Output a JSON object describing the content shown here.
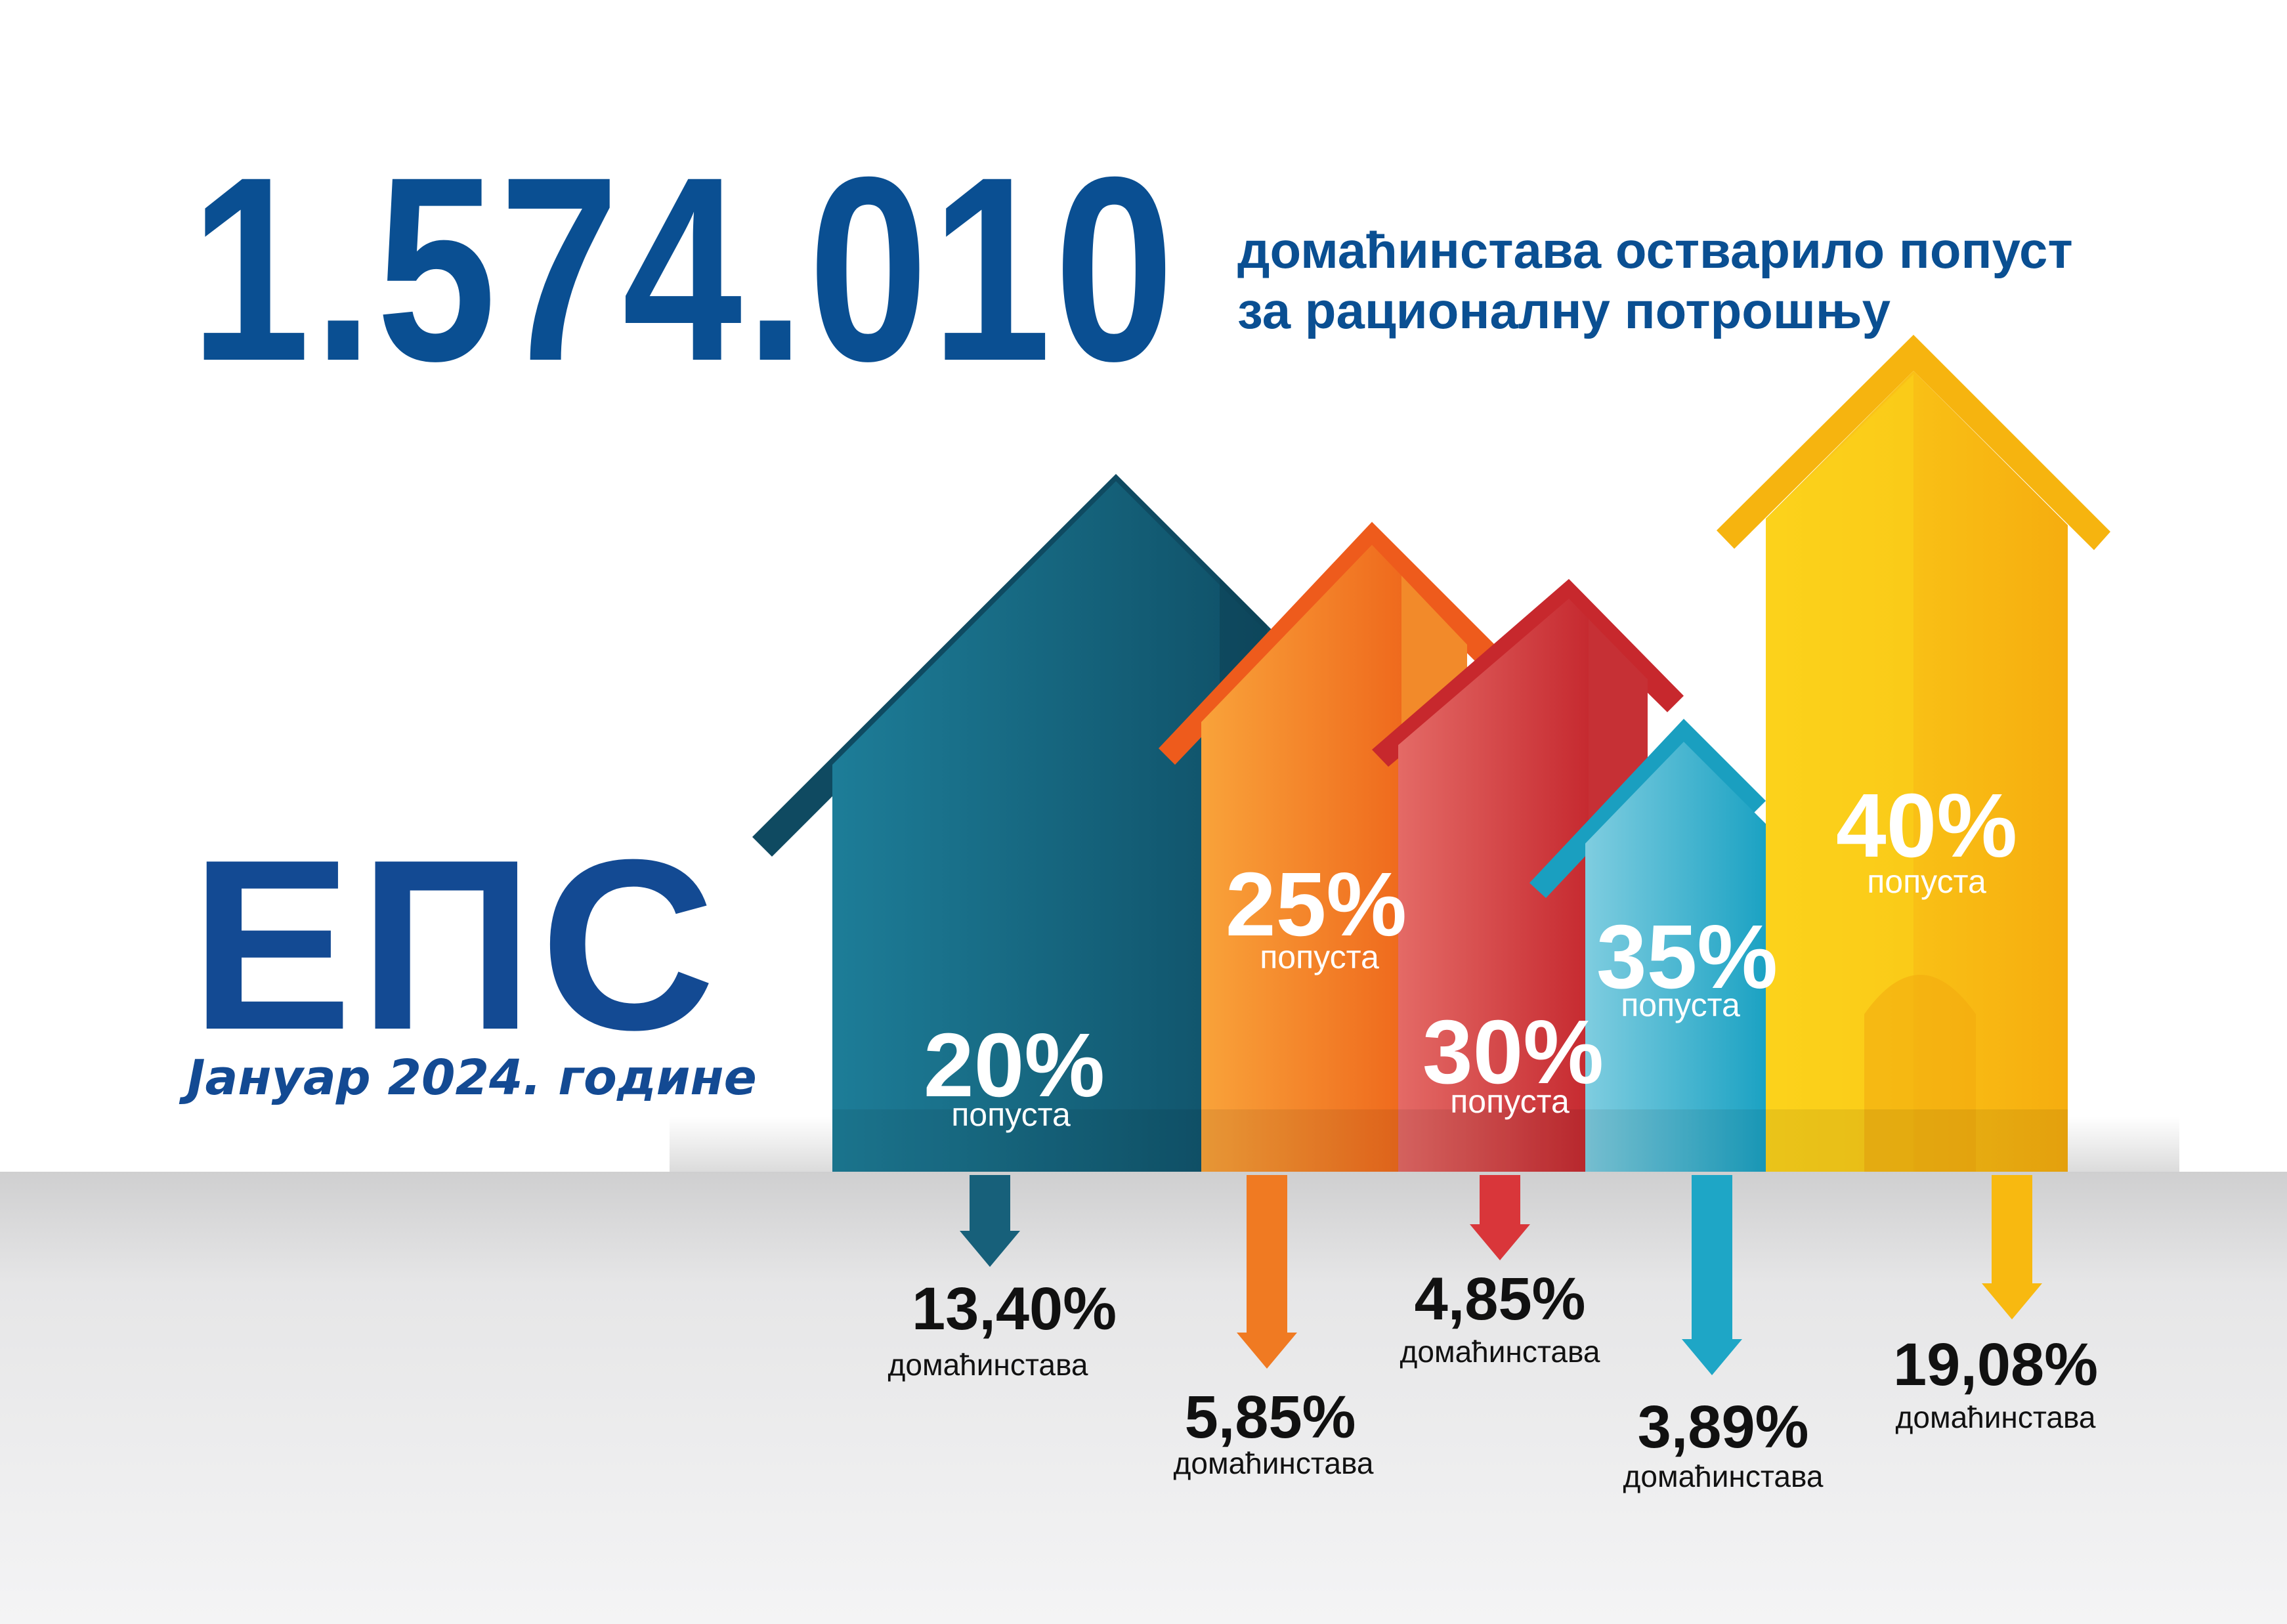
{
  "headline": {
    "number": "1.574.010",
    "line1": "домаћинстава остварило попуст",
    "line2": "за рационалну потрошњу"
  },
  "logo": {
    "text": "ЕПС"
  },
  "date_label": "Јануар 2024. године",
  "colors": {
    "teal": "#17607a",
    "orange": "#f07a22",
    "red": "#d9363a",
    "cyan": "#1ea6c6",
    "yellow": "#f8b910",
    "brand_blue": "#0a4f92"
  },
  "chart_data": {
    "type": "bar",
    "title": "",
    "categories": [
      "20%",
      "25%",
      "30%",
      "35%",
      "40%"
    ],
    "category_suffix": "попуста",
    "values": [
      13.4,
      5.85,
      4.85,
      3.89,
      19.08
    ],
    "value_labels": [
      "13,40%",
      "5,85%",
      "4,85%",
      "3,89%",
      "19,08%"
    ],
    "value_suffix": "домаћинстава",
    "series_colors": [
      "#17607a",
      "#f07a22",
      "#d9363a",
      "#1ea6c6",
      "#f8b910"
    ],
    "xlabel": "",
    "ylabel": ""
  }
}
